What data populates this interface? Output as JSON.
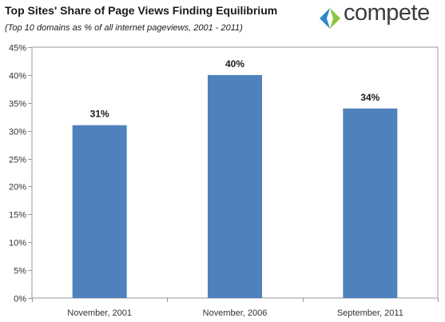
{
  "header": {
    "title": "Top Sites' Share of Page Views Finding Equilibrium",
    "subtitle": "(Top 10 domains as % of all internet pageviews, 2001 - 2011)"
  },
  "logo": {
    "text": "compete",
    "icon": "compete-logo-icon",
    "colors": {
      "blue": "#2e89c7",
      "green": "#8cc63f"
    }
  },
  "chart_data": {
    "type": "bar",
    "categories": [
      "November, 2001",
      "November, 2006",
      "September, 2011"
    ],
    "values": [
      31,
      40,
      34
    ],
    "data_labels": [
      "31%",
      "40%",
      "34%"
    ],
    "title": "Top Sites' Share of Page Views Finding Equilibrium",
    "subtitle": "(Top 10 domains as % of all internet pageviews, 2001 - 2011)",
    "xlabel": "",
    "ylabel": "",
    "ylim": [
      0,
      45
    ],
    "yticks": [
      0,
      5,
      10,
      15,
      20,
      25,
      30,
      35,
      40,
      45
    ],
    "ytick_labels": [
      "0%",
      "5%",
      "10%",
      "15%",
      "20%",
      "25%",
      "30%",
      "35%",
      "40%",
      "45%"
    ],
    "grid": false,
    "legend": "none",
    "bar_color": "#4f81bd"
  }
}
